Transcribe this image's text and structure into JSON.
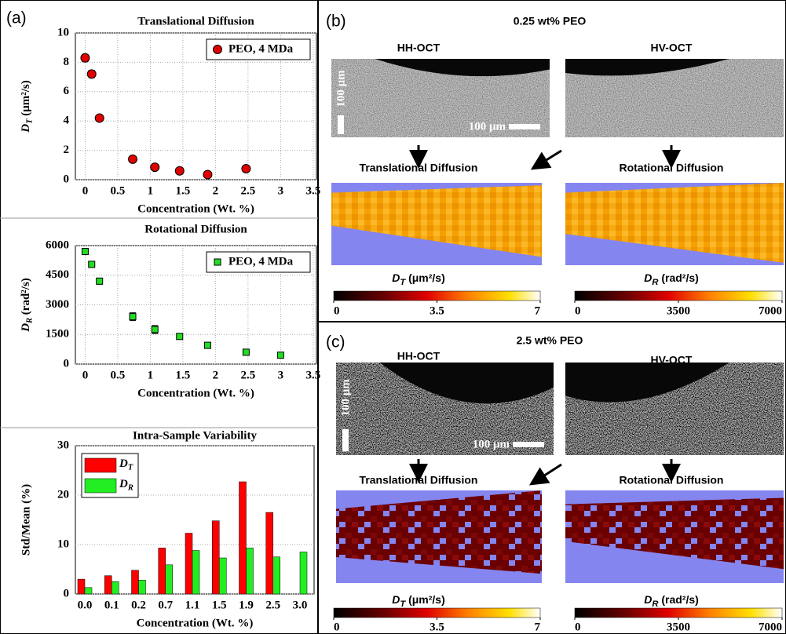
{
  "chart_data": [
    {
      "type": "scatter",
      "panel_label": "(a)",
      "title": "Translational Diffusion",
      "xlabel": "Concentration (Wt. %)",
      "ylabel": {
        "symbol": "D",
        "subscript": "T",
        "unit": " (μm²/s)"
      },
      "x": [
        0,
        0.1,
        0.22,
        0.73,
        1.07,
        1.45,
        1.88,
        2.47
      ],
      "series": [
        {
          "name": "PEO, 4 MDa",
          "color": "#e00000",
          "marker": "circle",
          "values": [
            8.3,
            7.2,
            4.2,
            1.4,
            0.85,
            0.6,
            0.35,
            0.75
          ],
          "errors": [
            0.25,
            0.25,
            0.2,
            0.15,
            0.15,
            0.15,
            0.15,
            0.15
          ]
        }
      ],
      "xlim": [
        -0.15,
        3.55
      ],
      "xticks": [
        0,
        0.5,
        1,
        1.5,
        2,
        2.5,
        3,
        3.5
      ],
      "ylim": [
        0,
        10
      ],
      "yticks": [
        0,
        2,
        4,
        6,
        8,
        10
      ],
      "grid": true,
      "legend": "upper right"
    },
    {
      "type": "scatter",
      "title": "Rotational Diffusion",
      "xlabel": "Concentration (Wt. %)",
      "ylabel": {
        "symbol": "D",
        "subscript": "R",
        "unit": " (rad²/s)"
      },
      "x": [
        0,
        0.1,
        0.22,
        0.73,
        1.07,
        1.45,
        1.88,
        2.47,
        3.0
      ],
      "series": [
        {
          "name": "PEO, 4 MDa",
          "color": "#22dd22",
          "marker": "square",
          "values": [
            5700,
            5050,
            4200,
            2400,
            1750,
            1400,
            950,
            600,
            450
          ],
          "errors": [
            150,
            150,
            150,
            200,
            200,
            100,
            100,
            100,
            100
          ]
        }
      ],
      "xlim": [
        -0.15,
        3.55
      ],
      "xticks": [
        0,
        0.5,
        1,
        1.5,
        2,
        2.5,
        3,
        3.5
      ],
      "ylim": [
        0,
        6000
      ],
      "yticks": [
        0,
        1500,
        3000,
        4500,
        6000
      ],
      "grid": true,
      "legend": "upper right"
    },
    {
      "type": "bar",
      "title": "Intra-Sample Variability",
      "xlabel": "Concentration (Wt. %)",
      "ylabel": "Std/Mean (%)",
      "categories": [
        "0.0",
        "0.1",
        "0.2",
        "0.7",
        "1.1",
        "1.5",
        "1.9",
        "2.5",
        "3.0"
      ],
      "series": [
        {
          "name": "D",
          "name_subscript": "T",
          "color": "#ff0000",
          "values": [
            3,
            3.7,
            4.8,
            9.3,
            12.3,
            14.8,
            22.7,
            16.5,
            null
          ]
        },
        {
          "name": "D",
          "name_subscript": "R",
          "color": "#22ee22",
          "values": [
            1.3,
            2.5,
            2.8,
            5.9,
            8.8,
            7.3,
            9.3,
            7.5,
            8.5
          ]
        }
      ],
      "ylim": [
        0,
        30
      ],
      "yticks": [
        0,
        10,
        20,
        30
      ],
      "grid": true,
      "legend": "upper left"
    }
  ],
  "panels": [
    {
      "label": "(b)",
      "title": "0.25 wt% PEO",
      "left_image": "HH-OCT",
      "right_image": "HV-OCT",
      "scale_bar": "100 μm",
      "left_map": "Translational Diffusion",
      "right_map": "Rotational Diffusion",
      "colorbars": [
        {
          "symbol": "D",
          "subscript": "T",
          "unit": " (μm²/s)",
          "lim": [
            0,
            7
          ],
          "ticks": [
            0,
            3.5,
            7
          ]
        },
        {
          "symbol": "D",
          "subscript": "R",
          "unit": " (rad²/s)",
          "lim": [
            0,
            7000
          ],
          "ticks": [
            0,
            3500,
            7000
          ]
        }
      ]
    },
    {
      "label": "(c)",
      "title": "2.5 wt% PEO",
      "left_image": "HH-OCT",
      "right_image": "HV-OCT",
      "scale_bar": "100 μm",
      "left_map": "Translational Diffusion",
      "right_map": "Rotational Diffusion",
      "colorbars": [
        {
          "symbol": "D",
          "subscript": "T",
          "unit": " (μm²/s)",
          "lim": [
            0,
            7
          ],
          "ticks": [
            0,
            3.5,
            7
          ]
        },
        {
          "symbol": "D",
          "subscript": "R",
          "unit": " (rad²/s)",
          "lim": [
            0,
            7000
          ],
          "ticks": [
            0,
            3500,
            7000
          ]
        }
      ]
    }
  ]
}
